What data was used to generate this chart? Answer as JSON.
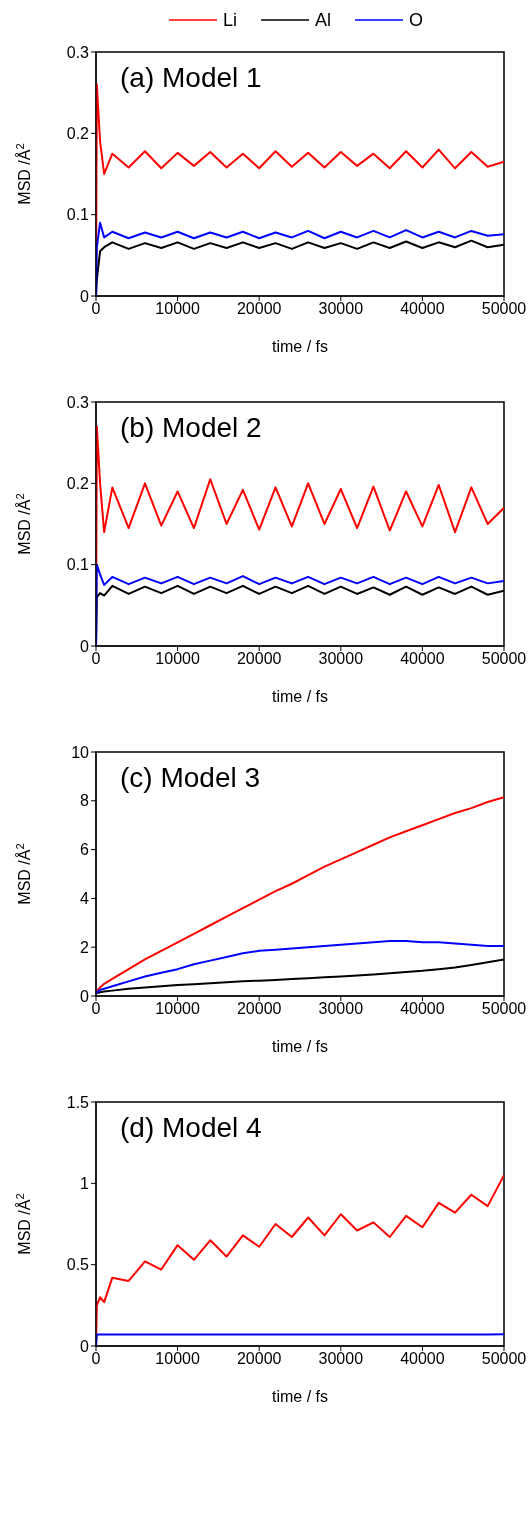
{
  "chart_data": [
    {
      "type": "line",
      "title": "(a) Model 1",
      "xlabel": "time / fs",
      "ylabel": "MSD /Å$^{2}$",
      "legend": "top",
      "xlim": [
        0,
        50000
      ],
      "xticks": [
        0,
        10000,
        20000,
        30000,
        40000,
        50000
      ],
      "ylim": [
        0,
        0.3
      ],
      "yticks": [
        0,
        0.1,
        0.2,
        0.3
      ],
      "x": [
        0,
        100,
        500,
        1000,
        2000,
        4000,
        6000,
        8000,
        10000,
        12000,
        14000,
        16000,
        18000,
        20000,
        22000,
        24000,
        26000,
        28000,
        30000,
        32000,
        34000,
        36000,
        38000,
        40000,
        42000,
        44000,
        46000,
        48000,
        50000
      ],
      "series": [
        {
          "name": "Li",
          "color": "#ff0000",
          "values": [
            0,
            0.26,
            0.19,
            0.15,
            0.175,
            0.158,
            0.178,
            0.157,
            0.176,
            0.16,
            0.177,
            0.158,
            0.175,
            0.157,
            0.178,
            0.159,
            0.176,
            0.158,
            0.177,
            0.16,
            0.175,
            0.157,
            0.178,
            0.158,
            0.18,
            0.157,
            0.177,
            0.159,
            0.165
          ]
        },
        {
          "name": "Al",
          "color": "#000000",
          "values": [
            0,
            0.02,
            0.055,
            0.06,
            0.066,
            0.058,
            0.065,
            0.059,
            0.066,
            0.058,
            0.065,
            0.059,
            0.066,
            0.059,
            0.065,
            0.058,
            0.066,
            0.059,
            0.065,
            0.058,
            0.066,
            0.059,
            0.067,
            0.059,
            0.066,
            0.06,
            0.068,
            0.06,
            0.063
          ]
        },
        {
          "name": "O",
          "color": "#0000ff",
          "values": [
            0,
            0.06,
            0.09,
            0.072,
            0.079,
            0.071,
            0.078,
            0.072,
            0.079,
            0.071,
            0.078,
            0.072,
            0.079,
            0.071,
            0.078,
            0.072,
            0.08,
            0.071,
            0.079,
            0.072,
            0.08,
            0.072,
            0.081,
            0.072,
            0.079,
            0.072,
            0.08,
            0.074,
            0.076
          ]
        }
      ]
    },
    {
      "type": "line",
      "title": "(b) Model 2",
      "xlabel": "time / fs",
      "ylabel": "MSD /Å$^{2}$",
      "xlim": [
        0,
        50000
      ],
      "xticks": [
        0,
        10000,
        20000,
        30000,
        40000,
        50000
      ],
      "ylim": [
        0,
        0.3
      ],
      "yticks": [
        0,
        0.1,
        0.2,
        0.3
      ],
      "x": [
        0,
        100,
        500,
        1000,
        2000,
        4000,
        6000,
        8000,
        10000,
        12000,
        14000,
        16000,
        18000,
        20000,
        22000,
        24000,
        26000,
        28000,
        30000,
        32000,
        34000,
        36000,
        38000,
        40000,
        42000,
        44000,
        46000,
        48000,
        50000
      ],
      "series": [
        {
          "color": "#ff0000",
          "values": [
            0,
            0.27,
            0.2,
            0.14,
            0.195,
            0.145,
            0.2,
            0.148,
            0.19,
            0.145,
            0.205,
            0.15,
            0.192,
            0.143,
            0.195,
            0.147,
            0.2,
            0.15,
            0.193,
            0.145,
            0.196,
            0.142,
            0.19,
            0.147,
            0.198,
            0.14,
            0.195,
            0.15,
            0.17
          ]
        },
        {
          "color": "#000000",
          "values": [
            0,
            0.06,
            0.065,
            0.062,
            0.074,
            0.064,
            0.073,
            0.065,
            0.074,
            0.064,
            0.073,
            0.065,
            0.074,
            0.064,
            0.073,
            0.065,
            0.074,
            0.064,
            0.073,
            0.064,
            0.072,
            0.063,
            0.073,
            0.063,
            0.072,
            0.064,
            0.073,
            0.063,
            0.068
          ]
        },
        {
          "color": "#0000ff",
          "values": [
            0,
            0.1,
            0.088,
            0.075,
            0.085,
            0.076,
            0.084,
            0.077,
            0.085,
            0.076,
            0.084,
            0.077,
            0.086,
            0.076,
            0.084,
            0.077,
            0.085,
            0.076,
            0.084,
            0.077,
            0.085,
            0.076,
            0.084,
            0.076,
            0.085,
            0.077,
            0.084,
            0.077,
            0.08
          ]
        }
      ]
    },
    {
      "type": "line",
      "title": "(c) Model 3",
      "xlabel": "time / fs",
      "ylabel": "MSD /Å$^{2}$",
      "xlim": [
        0,
        50000
      ],
      "xticks": [
        0,
        10000,
        20000,
        30000,
        40000,
        50000
      ],
      "ylim": [
        0,
        10
      ],
      "yticks": [
        0,
        2,
        4,
        6,
        8,
        10
      ],
      "x": [
        0,
        100,
        500,
        1000,
        2000,
        4000,
        6000,
        8000,
        10000,
        12000,
        14000,
        16000,
        18000,
        20000,
        22000,
        24000,
        26000,
        28000,
        30000,
        32000,
        34000,
        36000,
        38000,
        40000,
        42000,
        44000,
        46000,
        48000,
        50000
      ],
      "series": [
        {
          "color": "#ff0000",
          "values": [
            0.1,
            0.2,
            0.35,
            0.5,
            0.7,
            1.1,
            1.5,
            1.85,
            2.2,
            2.55,
            2.9,
            3.25,
            3.6,
            3.95,
            4.3,
            4.6,
            4.95,
            5.3,
            5.6,
            5.9,
            6.2,
            6.5,
            6.75,
            7.0,
            7.25,
            7.5,
            7.7,
            7.95,
            8.15
          ]
        },
        {
          "color": "#000000",
          "values": [
            0.1,
            0.12,
            0.15,
            0.18,
            0.22,
            0.3,
            0.35,
            0.4,
            0.45,
            0.48,
            0.52,
            0.56,
            0.6,
            0.63,
            0.66,
            0.7,
            0.73,
            0.77,
            0.8,
            0.84,
            0.88,
            0.93,
            0.98,
            1.03,
            1.1,
            1.17,
            1.27,
            1.38,
            1.5
          ]
        },
        {
          "color": "#0000ff",
          "values": [
            0.1,
            0.15,
            0.25,
            0.3,
            0.4,
            0.6,
            0.8,
            0.95,
            1.1,
            1.3,
            1.45,
            1.6,
            1.75,
            1.85,
            1.9,
            1.95,
            2.0,
            2.05,
            2.1,
            2.15,
            2.2,
            2.25,
            2.25,
            2.2,
            2.2,
            2.15,
            2.1,
            2.05,
            2.05
          ]
        }
      ]
    },
    {
      "type": "line",
      "title": "(d) Model 4",
      "xlabel": "time / fs",
      "ylabel": "MSD /Å$^{2}$",
      "xlim": [
        0,
        50000
      ],
      "xticks": [
        0,
        10000,
        20000,
        30000,
        40000,
        50000
      ],
      "ylim": [
        0,
        1.5
      ],
      "yticks": [
        0,
        0.5,
        1,
        1.5
      ],
      "x": [
        0,
        100,
        500,
        1000,
        2000,
        4000,
        6000,
        8000,
        10000,
        12000,
        14000,
        16000,
        18000,
        20000,
        22000,
        24000,
        26000,
        28000,
        30000,
        32000,
        34000,
        36000,
        38000,
        40000,
        42000,
        44000,
        46000,
        48000,
        50000
      ],
      "series": [
        {
          "color": "#ff0000",
          "values": [
            0,
            0.25,
            0.3,
            0.27,
            0.42,
            0.4,
            0.52,
            0.47,
            0.62,
            0.53,
            0.65,
            0.55,
            0.68,
            0.61,
            0.75,
            0.67,
            0.79,
            0.68,
            0.81,
            0.71,
            0.76,
            0.67,
            0.8,
            0.73,
            0.88,
            0.82,
            0.93,
            0.86,
            1.05
          ]
        },
        {
          "color": "#0000ff",
          "values": [
            0,
            0.07,
            0.07,
            0.07,
            0.07,
            0.07,
            0.07,
            0.07,
            0.07,
            0.07,
            0.07,
            0.07,
            0.07,
            0.07,
            0.07,
            0.07,
            0.07,
            0.07,
            0.07,
            0.07,
            0.07,
            0.07,
            0.07,
            0.07,
            0.07,
            0.07,
            0.07,
            0.07,
            0.072
          ]
        }
      ]
    }
  ]
}
